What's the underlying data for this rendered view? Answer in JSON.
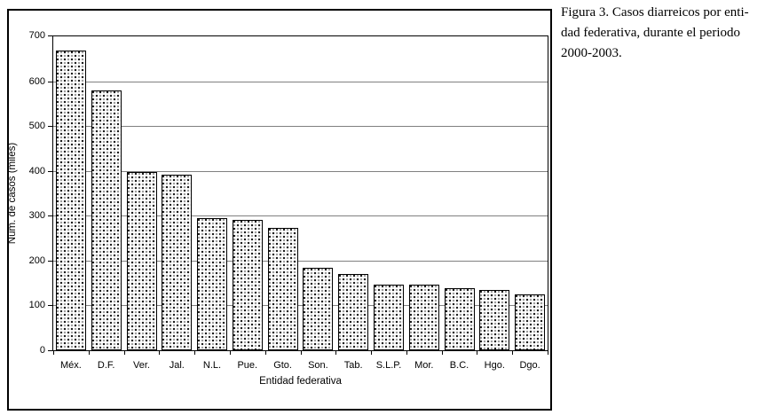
{
  "figure": {
    "caption_lines": [
      "Figura 3. Casos diarreicos por enti-",
      "dad federativa, durante el periodo",
      "2000-2003."
    ]
  },
  "chart_data": {
    "type": "bar",
    "title": "",
    "xlabel": "Entidad federativa",
    "ylabel": "Núm. de casos (miles)",
    "categories": [
      "Méx.",
      "D.F.",
      "Ver.",
      "Jal.",
      "N.L.",
      "Pue.",
      "Gto.",
      "Son.",
      "Tab.",
      "S.L.P.",
      "Mor.",
      "B.C.",
      "Hgo.",
      "Dgo."
    ],
    "values": [
      668,
      580,
      397,
      391,
      294,
      291,
      272,
      184,
      170,
      147,
      146,
      139,
      134,
      124
    ],
    "ylim": [
      0,
      700
    ],
    "yticks": [
      0,
      100,
      200,
      300,
      400,
      500,
      600,
      700
    ],
    "grid": "horizontal-gray-lines",
    "legend": "none",
    "bar_fill": "black-and-gray-dot-pattern-on-white",
    "colors": {
      "bar_border": "#000000",
      "gridline": "#808080",
      "axis": "#000000",
      "dot_dark": "#151515",
      "dot_light": "#9b9b9b",
      "background": "#ffffff"
    }
  }
}
